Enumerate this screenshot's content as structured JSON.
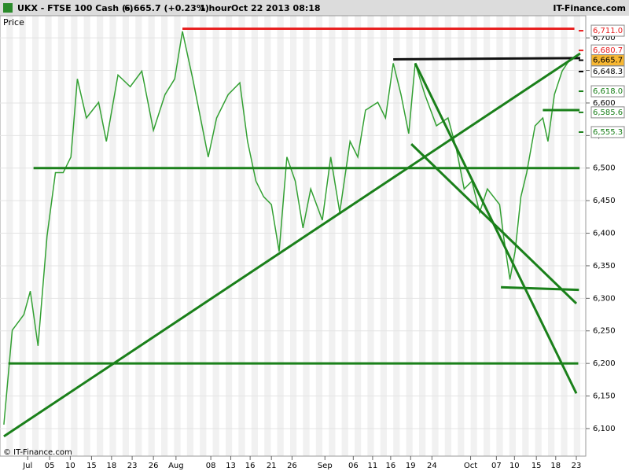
{
  "chart_data": {
    "type": "line",
    "title": "UKX - FTSE 100 Cash (-)",
    "last_price": "6,665.7 (+0.23%)",
    "interval": "1 hour",
    "timestamp": "Oct 22 2013 08:18",
    "brand": "IT-Finance.com",
    "y_label": "Price",
    "copyright": "© IT-Finance.com",
    "xlim": [
      -4.3,
      89
    ],
    "ylim": [
      6048,
      6734
    ],
    "xticks": [
      {
        "value": 0,
        "label": "Jul"
      },
      {
        "value": 3.4,
        "label": "05"
      },
      {
        "value": 6.6,
        "label": "10"
      },
      {
        "value": 9.9,
        "label": "15"
      },
      {
        "value": 13.0,
        "label": "18"
      },
      {
        "value": 16.2,
        "label": "23"
      },
      {
        "value": 19.5,
        "label": "26"
      },
      {
        "value": 23.0,
        "label": "Aug"
      },
      {
        "value": 28.4,
        "label": "08"
      },
      {
        "value": 31.5,
        "label": "13"
      },
      {
        "value": 34.5,
        "label": "16"
      },
      {
        "value": 37.8,
        "label": "21"
      },
      {
        "value": 41.0,
        "label": "26"
      },
      {
        "value": 46.1,
        "label": "Sep"
      },
      {
        "value": 50.5,
        "label": "06"
      },
      {
        "value": 53.5,
        "label": "11"
      },
      {
        "value": 56.3,
        "label": "16"
      },
      {
        "value": 59.4,
        "label": "19"
      },
      {
        "value": 62.7,
        "label": "24"
      },
      {
        "value": 68.7,
        "label": "Oct"
      },
      {
        "value": 72.7,
        "label": "07"
      },
      {
        "value": 75.5,
        "label": "10"
      },
      {
        "value": 78.9,
        "label": "15"
      },
      {
        "value": 81.9,
        "label": "18"
      },
      {
        "value": 85.1,
        "label": "23"
      }
    ],
    "yticks": [
      {
        "value": 6100,
        "label": "6,100"
      },
      {
        "value": 6150,
        "label": "6,150"
      },
      {
        "value": 6200,
        "label": "6,200"
      },
      {
        "value": 6250,
        "label": "6,250"
      },
      {
        "value": 6300,
        "label": "6,300"
      },
      {
        "value": 6350,
        "label": "6,350"
      },
      {
        "value": 6400,
        "label": "6,400"
      },
      {
        "value": 6450,
        "label": "6,450"
      },
      {
        "value": 6500,
        "label": "6,500"
      },
      {
        "value": 6550,
        "label": "6,550"
      },
      {
        "value": 6600,
        "label": "6,600"
      },
      {
        "value": 6650,
        "label": "6,650"
      },
      {
        "value": 6700,
        "label": "6,700"
      }
    ],
    "series": [
      {
        "name": "Price",
        "color": "#33a033",
        "x": [
          -3.7,
          -2.4,
          -0.6,
          0.4,
          1.6,
          3.0,
          4.3,
          5.5,
          6.7,
          7.7,
          9.1,
          11.0,
          12.2,
          14.0,
          15.9,
          17.7,
          19.5,
          21.3,
          22.8,
          24.0,
          25.6,
          26.8,
          28.0,
          29.3,
          31.1,
          32.9,
          34.1,
          35.4,
          36.6,
          37.8,
          39.0,
          40.2,
          41.5,
          42.7,
          43.9,
          45.7,
          47.0,
          48.4,
          50.0,
          51.2,
          52.4,
          54.3,
          55.5,
          56.7,
          57.9,
          59.1,
          60.1,
          61.6,
          63.4,
          65.2,
          66.5,
          67.7,
          68.9,
          70.1,
          71.3,
          73.2,
          73.8,
          74.8,
          75.6,
          76.5,
          77.4,
          78.7,
          79.9,
          80.7,
          81.7,
          82.9,
          84.1
        ],
        "values": [
          6106,
          6251,
          6275,
          6311,
          6227,
          6396,
          6493,
          6493,
          6517,
          6637,
          6577,
          6601,
          6541,
          6643,
          6625,
          6649,
          6558,
          6613,
          6637,
          6710,
          6637,
          6577,
          6517,
          6577,
          6613,
          6631,
          6541,
          6480,
          6456,
          6444,
          6372,
          6517,
          6480,
          6408,
          6468,
          6420,
          6517,
          6432,
          6541,
          6517,
          6589,
          6601,
          6577,
          6661,
          6613,
          6553,
          6661,
          6613,
          6565,
          6577,
          6529,
          6468,
          6480,
          6432,
          6468,
          6444,
          6396,
          6329,
          6372,
          6456,
          6493,
          6565,
          6577,
          6541,
          6613,
          6649,
          6667
        ]
      }
    ],
    "trendlines": [
      {
        "x": [
          24.0,
          84.8
        ],
        "y": [
          6714,
          6714
        ],
        "color": "#e82020"
      },
      {
        "x": [
          56.7,
          85.7
        ],
        "y": [
          6667,
          6669
        ],
        "color": "#111111"
      },
      {
        "x": [
          0.9,
          85.6
        ],
        "y": [
          6500,
          6500
        ],
        "color": "#1a801a"
      },
      {
        "x": [
          -3.0,
          85.4
        ],
        "y": [
          6200,
          6200
        ],
        "color": "#1a801a"
      },
      {
        "x": [
          -3.7,
          85.7
        ],
        "y": [
          6088,
          6676
        ],
        "color": "#1a801a"
      },
      {
        "x": [
          60.1,
          85.1
        ],
        "y": [
          6661,
          6154
        ],
        "color": "#1a801a"
      },
      {
        "x": [
          59.5,
          85.1
        ],
        "y": [
          6537,
          6292
        ],
        "color": "#1a801a"
      },
      {
        "x": [
          73.4,
          85.5
        ],
        "y": [
          6317,
          6313
        ],
        "color": "#1a801a"
      },
      {
        "x": [
          79.9,
          85.6
        ],
        "y": [
          6589,
          6589
        ],
        "color": "#1a801a"
      }
    ],
    "price_labels": [
      {
        "value": 6711.0,
        "label": "6,711.0",
        "color": "#e82020",
        "background": "#ffffff"
      },
      {
        "value": 6680.7,
        "label": "6,680.7",
        "color": "#e82020",
        "background": "#ffffff"
      },
      {
        "value": 6665.7,
        "label": "6,665.7",
        "color": "#000000",
        "background": "#f7b733"
      },
      {
        "value": 6648.3,
        "label": "6,648.3",
        "color": "#000000",
        "background": "#ffffff"
      },
      {
        "value": 6618.0,
        "label": "6,618.0",
        "color": "#1a801a",
        "background": "#ffffff"
      },
      {
        "value": 6585.6,
        "label": "6,585.6",
        "color": "#1a801a",
        "background": "#ffffff"
      },
      {
        "value": 6555.3,
        "label": "6,555.3",
        "color": "#1a801a",
        "background": "#ffffff"
      }
    ]
  }
}
